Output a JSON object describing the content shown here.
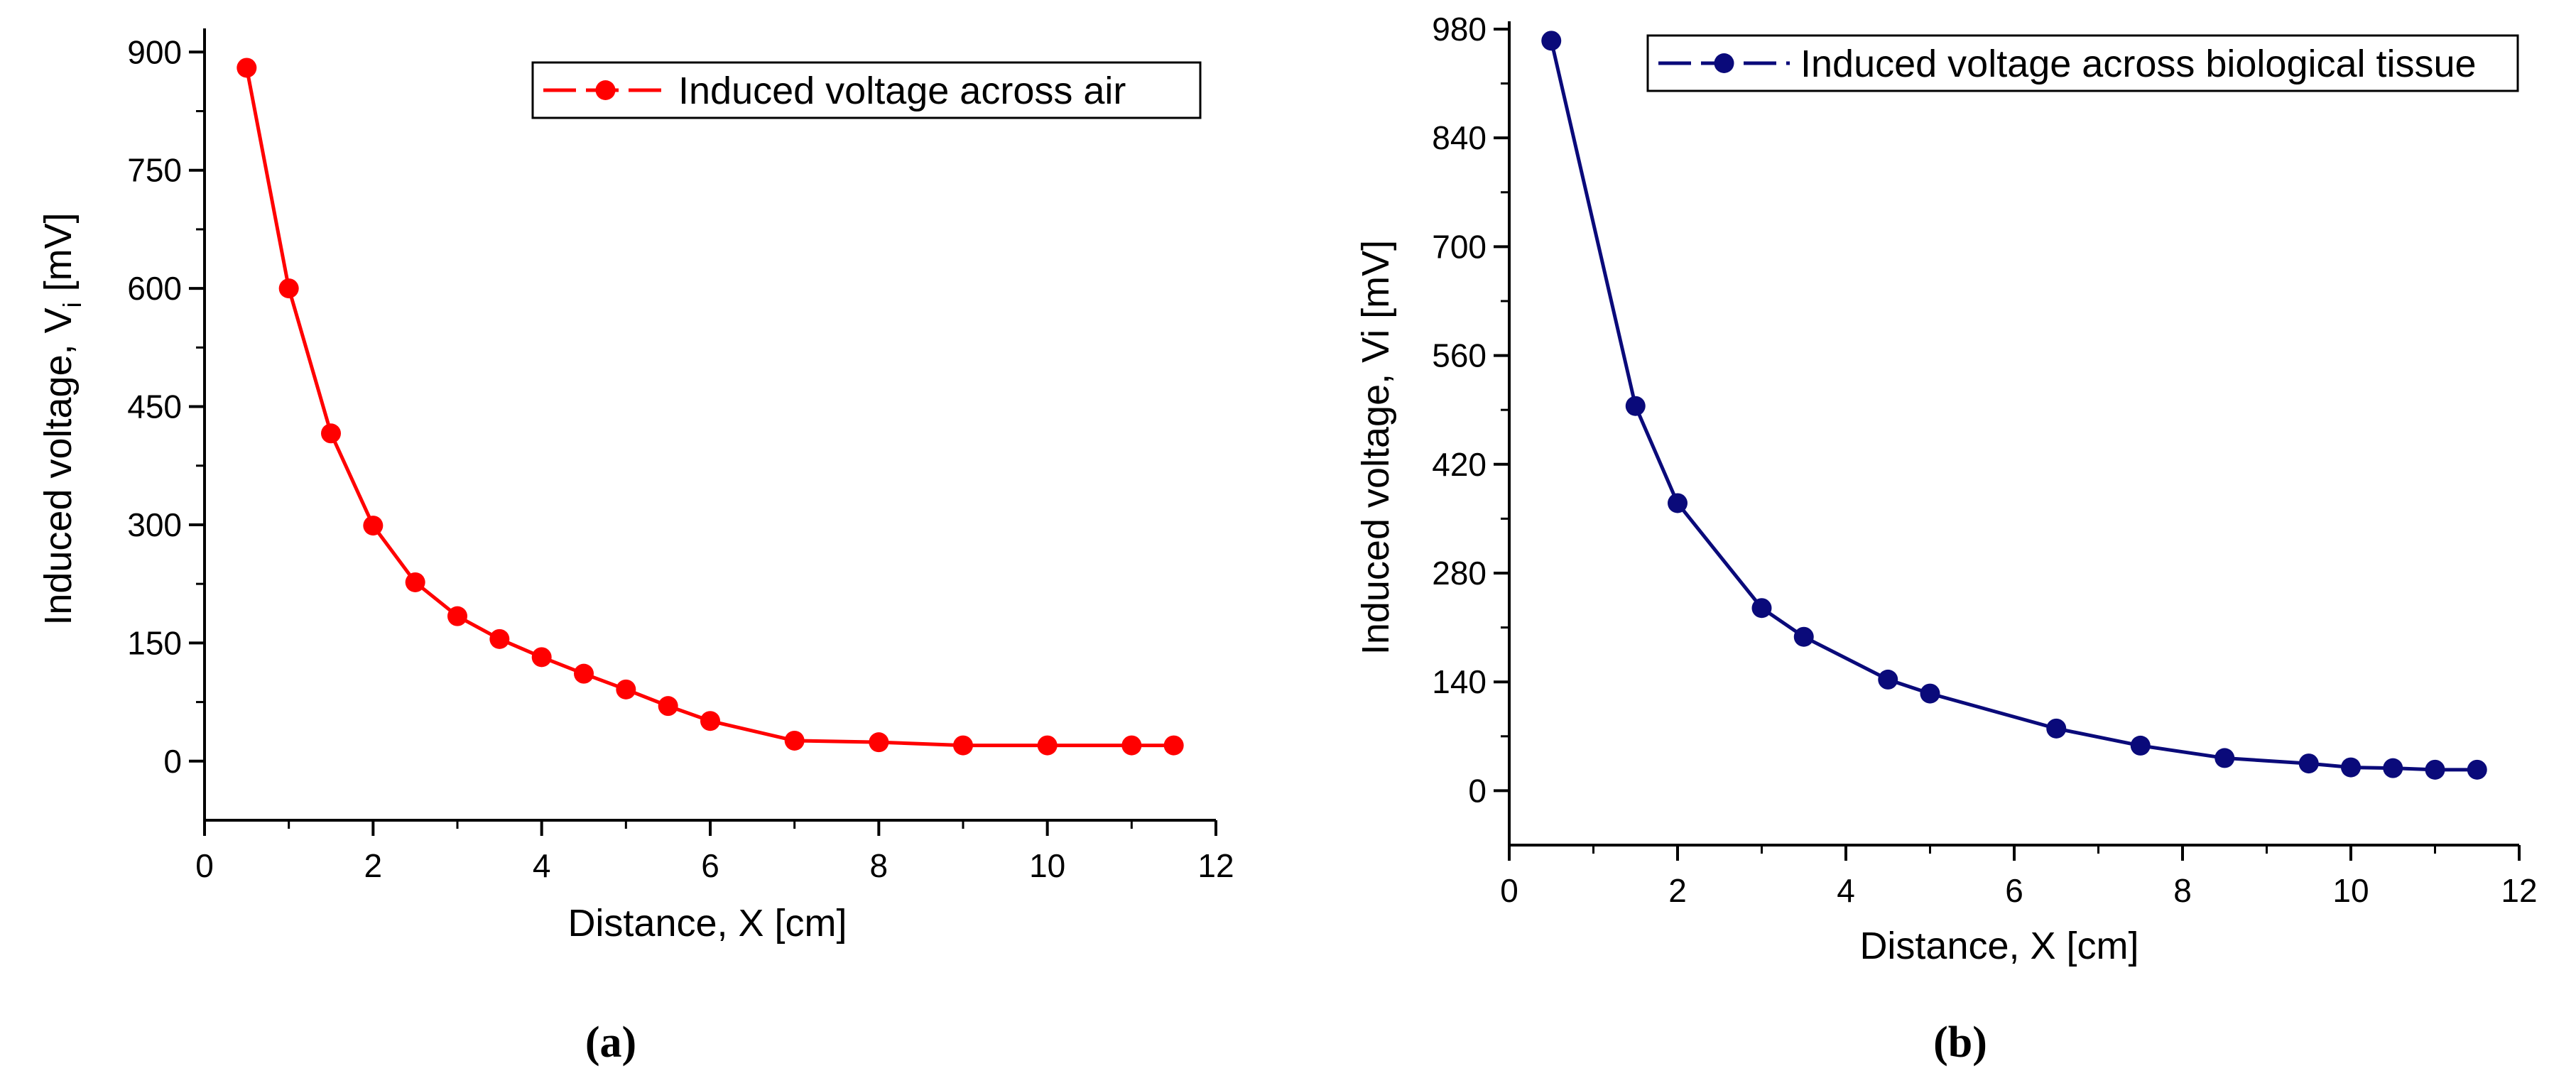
{
  "chart_data": [
    {
      "type": "line",
      "xlabel": "Distance, X [cm]",
      "ylabel": "Induced voltage, V",
      "ylabel_subscript": "i",
      "ylabel_suffix": " [mV]",
      "panel_label": "(a)",
      "xlim": [
        0,
        12
      ],
      "ylim": [
        -75,
        930
      ],
      "xticks": [
        0,
        2,
        4,
        6,
        8,
        10,
        12
      ],
      "yticks": [
        0,
        150,
        300,
        450,
        600,
        750,
        900
      ],
      "grid": false,
      "legend_position": "top-right",
      "series": [
        {
          "name": "Induced voltage across air",
          "color": "#ff0000",
          "x": [
            0.5,
            1,
            1.5,
            2,
            2.5,
            3,
            3.5,
            4,
            4.5,
            5,
            5.5,
            6,
            7,
            8,
            9,
            10,
            11,
            11.5
          ],
          "y": [
            880,
            600,
            416,
            299,
            227,
            184,
            155,
            132,
            111,
            91,
            70,
            51,
            26,
            24,
            20,
            20,
            20,
            20
          ]
        }
      ]
    },
    {
      "type": "line",
      "xlabel": "Distance, X [cm]",
      "ylabel": "Induced voltage,  Vi [mV]",
      "panel_label": "(b)",
      "xlim": [
        0,
        12
      ],
      "ylim": [
        -70,
        990
      ],
      "xticks": [
        0,
        2,
        4,
        6,
        8,
        10,
        12
      ],
      "yticks": [
        0,
        140,
        280,
        420,
        560,
        700,
        840,
        980
      ],
      "grid": false,
      "legend_position": "top-right",
      "series": [
        {
          "name": "Induced voltage across biological tissue",
          "color": "#0a0a7a",
          "x": [
            0.5,
            1.5,
            2,
            3,
            3.5,
            4.5,
            5,
            6.5,
            7.5,
            8.5,
            9.5,
            10,
            10.5,
            11,
            11.5
          ],
          "y": [
            965,
            495,
            370,
            235,
            198,
            143,
            125,
            80,
            58,
            42,
            35,
            30,
            29,
            27,
            27
          ]
        }
      ]
    }
  ]
}
